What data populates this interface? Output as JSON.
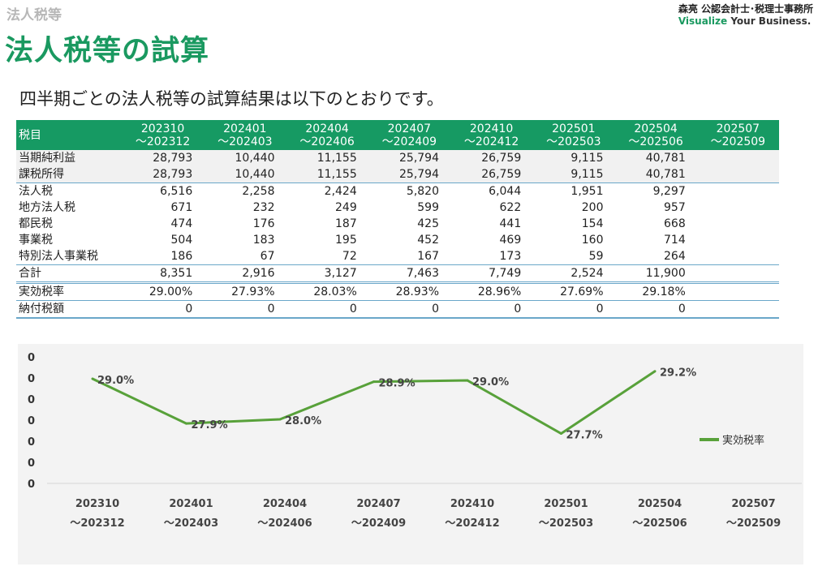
{
  "header": {
    "breadcrumb": "法人税等",
    "title": "法人税等の試算",
    "logo_line1": "森亮 公認会計士･税理士事務所",
    "logo_accent": "Visualize",
    "logo_rest": "Your Business.",
    "subtitle": "四半期ごとの法人税等の試算結果は以下のとおりです。"
  },
  "table": {
    "corner": "税目",
    "periods": [
      {
        "l1": "202310",
        "l2": "～202312"
      },
      {
        "l1": "202401",
        "l2": "～202403"
      },
      {
        "l1": "202404",
        "l2": "～202406"
      },
      {
        "l1": "202407",
        "l2": "～202409"
      },
      {
        "l1": "202410",
        "l2": "～202412"
      },
      {
        "l1": "202501",
        "l2": "～202503"
      },
      {
        "l1": "202504",
        "l2": "～202506"
      },
      {
        "l1": "202507",
        "l2": "～202509"
      }
    ],
    "rows": [
      {
        "label": "当期純利益",
        "values": [
          "28,793",
          "10,440",
          "11,155",
          "25,794",
          "26,759",
          "9,115",
          "40,781",
          ""
        ],
        "cls": "shade"
      },
      {
        "label": "課税所得",
        "values": [
          "28,793",
          "10,440",
          "11,155",
          "25,794",
          "26,759",
          "9,115",
          "40,781",
          ""
        ],
        "cls": "shade"
      },
      {
        "label": "法人税",
        "values": [
          "6,516",
          "2,258",
          "2,424",
          "5,820",
          "6,044",
          "1,951",
          "9,297",
          ""
        ],
        "cls": "bt"
      },
      {
        "label": "地方法人税",
        "values": [
          "671",
          "232",
          "249",
          "599",
          "622",
          "200",
          "957",
          ""
        ],
        "cls": ""
      },
      {
        "label": "都民税",
        "values": [
          "474",
          "176",
          "187",
          "425",
          "441",
          "154",
          "668",
          ""
        ],
        "cls": ""
      },
      {
        "label": "事業税",
        "values": [
          "504",
          "183",
          "195",
          "452",
          "469",
          "160",
          "714",
          ""
        ],
        "cls": ""
      },
      {
        "label": "特別法人事業税",
        "values": [
          "186",
          "67",
          "72",
          "167",
          "173",
          "59",
          "264",
          ""
        ],
        "cls": ""
      },
      {
        "label": "合計",
        "values": [
          "8,351",
          "2,916",
          "3,127",
          "7,463",
          "7,749",
          "2,524",
          "11,900",
          ""
        ],
        "cls": "bt bb2"
      },
      {
        "label": "実効税率",
        "values": [
          "29.00%",
          "27.93%",
          "28.03%",
          "28.93%",
          "28.96%",
          "27.69%",
          "29.18%",
          ""
        ],
        "cls": ""
      },
      {
        "label": "納付税額",
        "values": [
          "0",
          "0",
          "0",
          "0",
          "0",
          "0",
          "0",
          ""
        ],
        "cls": "bt last"
      }
    ]
  },
  "chart_data": {
    "type": "line",
    "categories": [
      {
        "l1": "202310",
        "l2": "～202312"
      },
      {
        "l1": "202401",
        "l2": "～202403"
      },
      {
        "l1": "202404",
        "l2": "～202406"
      },
      {
        "l1": "202407",
        "l2": "～202409"
      },
      {
        "l1": "202410",
        "l2": "～202412"
      },
      {
        "l1": "202501",
        "l2": "～202503"
      },
      {
        "l1": "202504",
        "l2": "～202506"
      },
      {
        "l1": "202507",
        "l2": "～202509"
      }
    ],
    "series": [
      {
        "name": "実効税率",
        "values": [
          29.0,
          27.93,
          28.03,
          28.93,
          28.96,
          27.69,
          29.18,
          null
        ],
        "labels": [
          "29.0%",
          "27.9%",
          "28.0%",
          "28.9%",
          "29.0%",
          "27.7%",
          "29.2%",
          ""
        ],
        "color": "#58a13a"
      }
    ],
    "y_tick_labels": [
      "0",
      "0",
      "0",
      "0",
      "0",
      "0",
      "0"
    ],
    "ylim": [
      27.0,
      29.5
    ],
    "legend_position": "right",
    "grid": false
  }
}
